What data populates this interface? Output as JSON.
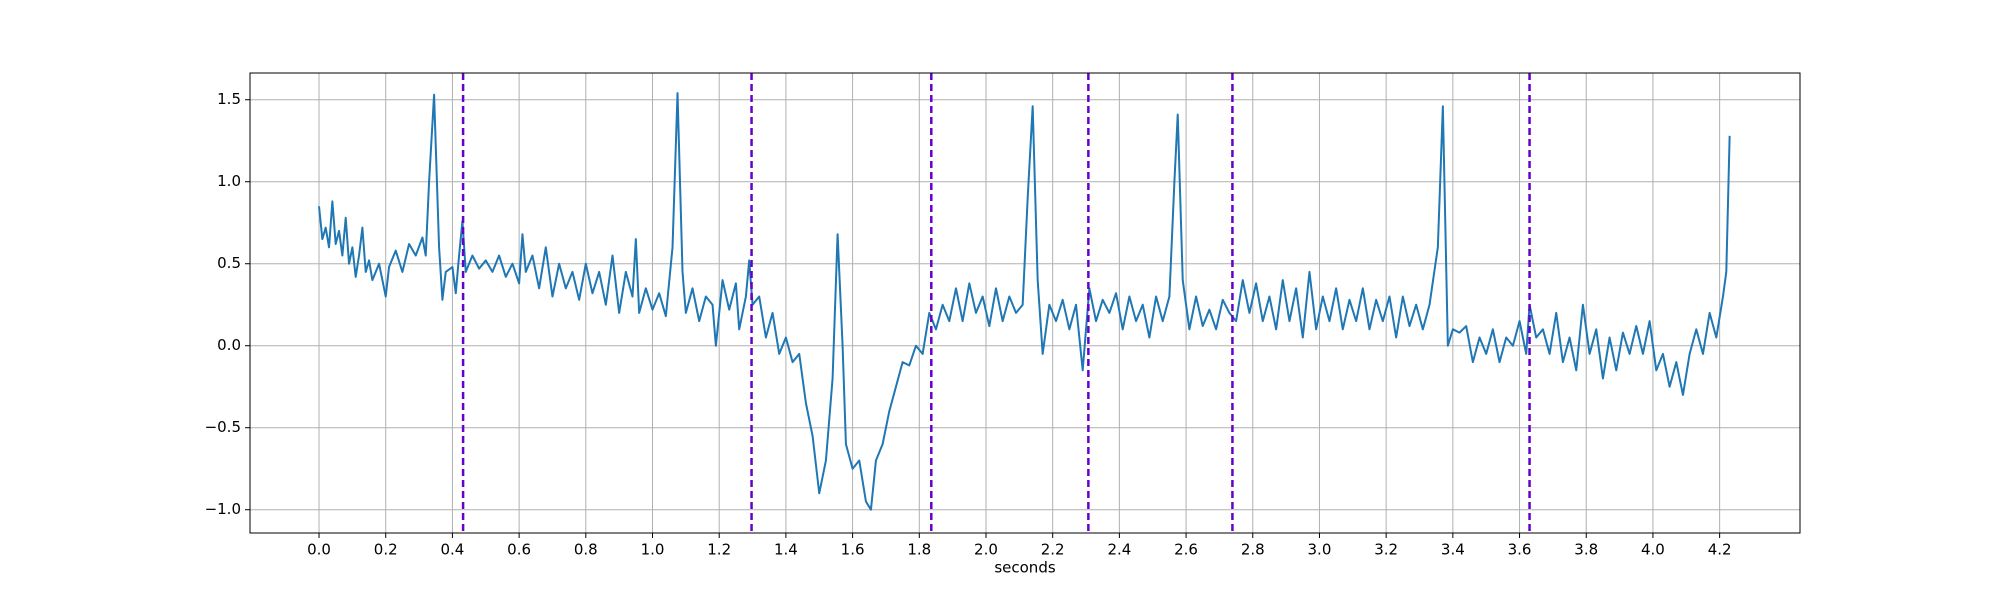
{
  "chart_data": {
    "type": "line",
    "xlabel": "seconds",
    "x": [
      0.0,
      0.01,
      0.02,
      0.03,
      0.04,
      0.05,
      0.06,
      0.07,
      0.08,
      0.09,
      0.1,
      0.11,
      0.12,
      0.13,
      0.14,
      0.15,
      0.16,
      0.18,
      0.2,
      0.21,
      0.23,
      0.25,
      0.27,
      0.29,
      0.31,
      0.32,
      0.33,
      0.345,
      0.36,
      0.37,
      0.38,
      0.4,
      0.41,
      0.42,
      0.43,
      0.44,
      0.46,
      0.48,
      0.5,
      0.52,
      0.54,
      0.56,
      0.58,
      0.6,
      0.61,
      0.62,
      0.64,
      0.66,
      0.68,
      0.7,
      0.72,
      0.74,
      0.76,
      0.78,
      0.8,
      0.82,
      0.84,
      0.86,
      0.88,
      0.9,
      0.92,
      0.94,
      0.95,
      0.96,
      0.98,
      1.0,
      1.02,
      1.04,
      1.06,
      1.075,
      1.09,
      1.1,
      1.12,
      1.14,
      1.16,
      1.18,
      1.19,
      1.21,
      1.23,
      1.25,
      1.26,
      1.28,
      1.29,
      1.3,
      1.32,
      1.34,
      1.36,
      1.38,
      1.4,
      1.42,
      1.44,
      1.46,
      1.48,
      1.5,
      1.52,
      1.54,
      1.555,
      1.57,
      1.58,
      1.6,
      1.62,
      1.64,
      1.655,
      1.67,
      1.69,
      1.71,
      1.73,
      1.75,
      1.77,
      1.79,
      1.81,
      1.83,
      1.85,
      1.87,
      1.89,
      1.91,
      1.93,
      1.95,
      1.97,
      1.99,
      2.01,
      2.03,
      2.05,
      2.07,
      2.09,
      2.11,
      2.125,
      2.14,
      2.155,
      2.17,
      2.19,
      2.21,
      2.23,
      2.25,
      2.27,
      2.29,
      2.31,
      2.33,
      2.35,
      2.37,
      2.39,
      2.41,
      2.43,
      2.45,
      2.47,
      2.49,
      2.51,
      2.53,
      2.55,
      2.565,
      2.575,
      2.59,
      2.61,
      2.63,
      2.65,
      2.67,
      2.69,
      2.71,
      2.73,
      2.75,
      2.77,
      2.79,
      2.81,
      2.83,
      2.85,
      2.87,
      2.89,
      2.91,
      2.93,
      2.95,
      2.97,
      2.99,
      3.01,
      3.03,
      3.05,
      3.07,
      3.09,
      3.11,
      3.13,
      3.15,
      3.17,
      3.19,
      3.21,
      3.23,
      3.25,
      3.27,
      3.29,
      3.31,
      3.33,
      3.355,
      3.37,
      3.385,
      3.4,
      3.42,
      3.44,
      3.46,
      3.48,
      3.5,
      3.52,
      3.54,
      3.56,
      3.58,
      3.6,
      3.62,
      3.63,
      3.65,
      3.67,
      3.69,
      3.71,
      3.73,
      3.75,
      3.77,
      3.79,
      3.81,
      3.83,
      3.85,
      3.87,
      3.89,
      3.91,
      3.93,
      3.95,
      3.97,
      3.99,
      4.01,
      4.03,
      4.05,
      4.07,
      4.09,
      4.11,
      4.13,
      4.15,
      4.17,
      4.19,
      4.21,
      4.22,
      4.23
    ],
    "series": [
      {
        "color": "#1f77b4",
        "values": [
          0.85,
          0.65,
          0.72,
          0.6,
          0.88,
          0.62,
          0.7,
          0.55,
          0.78,
          0.5,
          0.6,
          0.42,
          0.55,
          0.72,
          0.45,
          0.52,
          0.4,
          0.5,
          0.3,
          0.48,
          0.58,
          0.45,
          0.62,
          0.55,
          0.66,
          0.55,
          1.0,
          1.53,
          0.6,
          0.28,
          0.45,
          0.48,
          0.32,
          0.55,
          0.76,
          0.45,
          0.55,
          0.47,
          0.52,
          0.45,
          0.55,
          0.42,
          0.5,
          0.38,
          0.68,
          0.45,
          0.55,
          0.35,
          0.6,
          0.3,
          0.5,
          0.35,
          0.45,
          0.28,
          0.5,
          0.32,
          0.45,
          0.25,
          0.55,
          0.2,
          0.45,
          0.3,
          0.65,
          0.2,
          0.35,
          0.22,
          0.32,
          0.18,
          0.6,
          1.54,
          0.45,
          0.2,
          0.35,
          0.15,
          0.3,
          0.25,
          0.0,
          0.4,
          0.22,
          0.38,
          0.1,
          0.3,
          0.52,
          0.25,
          0.3,
          0.05,
          0.2,
          -0.05,
          0.05,
          -0.1,
          -0.05,
          -0.35,
          -0.55,
          -0.9,
          -0.7,
          -0.2,
          0.68,
          0.0,
          -0.6,
          -0.75,
          -0.7,
          -0.95,
          -1.0,
          -0.7,
          -0.6,
          -0.4,
          -0.25,
          -0.1,
          -0.12,
          0.0,
          -0.05,
          0.2,
          0.1,
          0.25,
          0.15,
          0.35,
          0.15,
          0.38,
          0.2,
          0.3,
          0.12,
          0.35,
          0.15,
          0.3,
          0.2,
          0.25,
          0.9,
          1.46,
          0.4,
          -0.05,
          0.25,
          0.15,
          0.28,
          0.1,
          0.25,
          -0.15,
          0.35,
          0.15,
          0.28,
          0.2,
          0.32,
          0.1,
          0.3,
          0.15,
          0.25,
          0.05,
          0.3,
          0.15,
          0.3,
          1.0,
          1.41,
          0.4,
          0.1,
          0.3,
          0.12,
          0.22,
          0.1,
          0.28,
          0.2,
          0.15,
          0.4,
          0.2,
          0.38,
          0.15,
          0.3,
          0.1,
          0.4,
          0.15,
          0.35,
          0.05,
          0.45,
          0.1,
          0.3,
          0.15,
          0.35,
          0.1,
          0.28,
          0.15,
          0.35,
          0.1,
          0.28,
          0.15,
          0.3,
          0.05,
          0.3,
          0.12,
          0.25,
          0.1,
          0.25,
          0.6,
          1.46,
          0.0,
          0.1,
          0.08,
          0.12,
          -0.1,
          0.05,
          -0.05,
          0.1,
          -0.1,
          0.05,
          0.0,
          0.15,
          -0.05,
          0.25,
          0.05,
          0.1,
          -0.05,
          0.2,
          -0.1,
          0.05,
          -0.15,
          0.25,
          -0.05,
          0.1,
          -0.2,
          0.05,
          -0.15,
          0.08,
          -0.05,
          0.12,
          -0.05,
          0.15,
          -0.15,
          -0.05,
          -0.25,
          -0.1,
          -0.3,
          -0.05,
          0.1,
          -0.05,
          0.2,
          0.05,
          0.3,
          0.45,
          1.28
        ]
      }
    ],
    "vlines": [
      0.432,
      1.297,
      1.836,
      2.307,
      2.739,
      3.63
    ],
    "vline_color": "#6600cc",
    "xlim": [
      -0.207,
      4.441
    ],
    "ylim": [
      -1.142,
      1.663
    ],
    "xticks": [
      {
        "value": 0,
        "label": "0.0"
      },
      0.2,
      0.4,
      0.6,
      0.8,
      {
        "value": 1,
        "label": "1.0"
      },
      1.2,
      1.4,
      1.6,
      1.8,
      {
        "value": 2,
        "label": "2.0"
      },
      2.2,
      2.4,
      2.6,
      2.8,
      {
        "value": 3,
        "label": "3.0"
      },
      3.2,
      3.4,
      3.6,
      3.8,
      {
        "value": 4,
        "label": "4.0"
      },
      4.2
    ],
    "yticks": [
      {
        "value": -1,
        "label": "−1.0"
      },
      {
        "value": -0.5,
        "label": "−0.5"
      },
      {
        "value": 0,
        "label": "0.0"
      },
      0.5,
      {
        "value": 1,
        "label": "1.0"
      },
      1.5
    ],
    "grid": true
  }
}
